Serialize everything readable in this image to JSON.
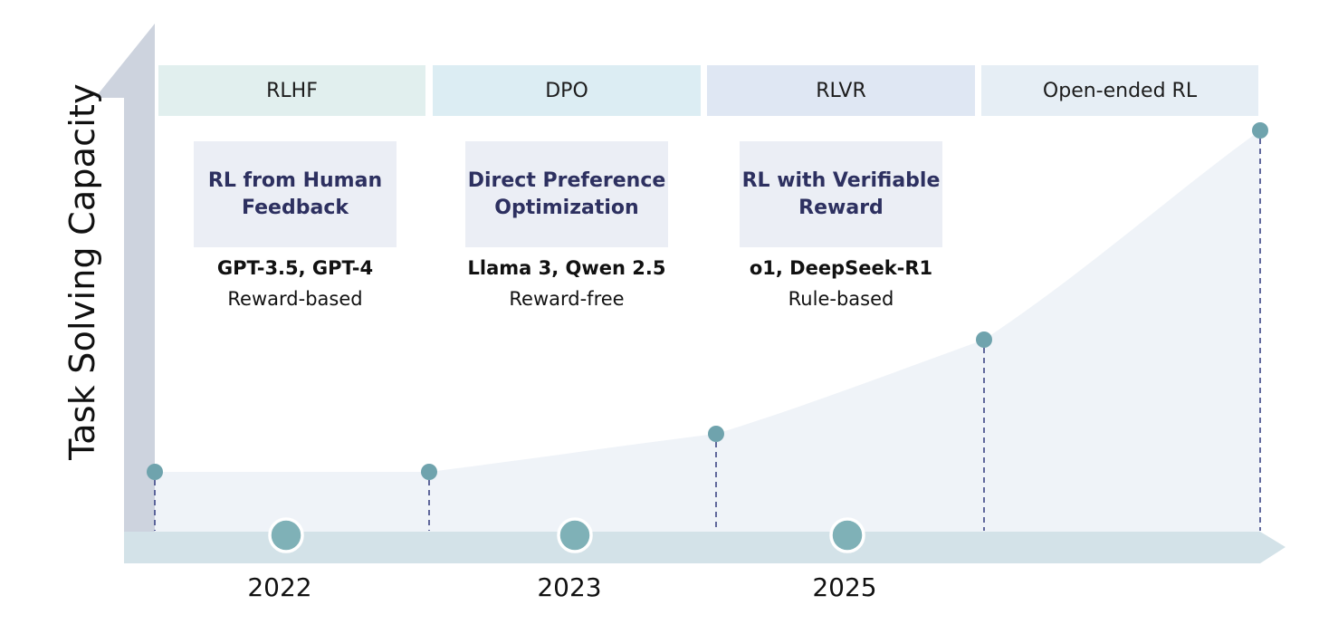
{
  "y_axis_label": "Task Solving Capacity",
  "eras": [
    {
      "header": "RLHF",
      "header_color": "#e1efee",
      "box_lines": [
        "RL from Human",
        "Feedback"
      ],
      "models": "GPT-3.5, GPT-4",
      "type": "Reward-based"
    },
    {
      "header": "DPO",
      "header_color": "#dcedf3",
      "box_lines": [
        "Direct Preference",
        "Optimization"
      ],
      "models": "Llama 3, Qwen 2.5",
      "type": "Reward-free"
    },
    {
      "header": "RLVR",
      "header_color": "#dfe7f3",
      "box_lines": [
        "RL with Verifiable",
        "Reward"
      ],
      "models": "o1, DeepSeek-R1",
      "type": "Rule-based"
    },
    {
      "header": "Open-ended RL",
      "header_color": "#e6eef5",
      "box_lines": [],
      "models": "",
      "type": ""
    }
  ],
  "years": [
    "2022",
    "2023",
    "2025"
  ],
  "colors": {
    "axis_arrow": "#cdd3de",
    "timeline_band": "#d3e2e8",
    "curve_fill": "#eff3f8",
    "point": "#6fa3ad",
    "year_marker": "#7fb1b7",
    "dashed_line": "#3c4586",
    "box_fill": "#ebeef5",
    "box_text": "#2d3060"
  }
}
